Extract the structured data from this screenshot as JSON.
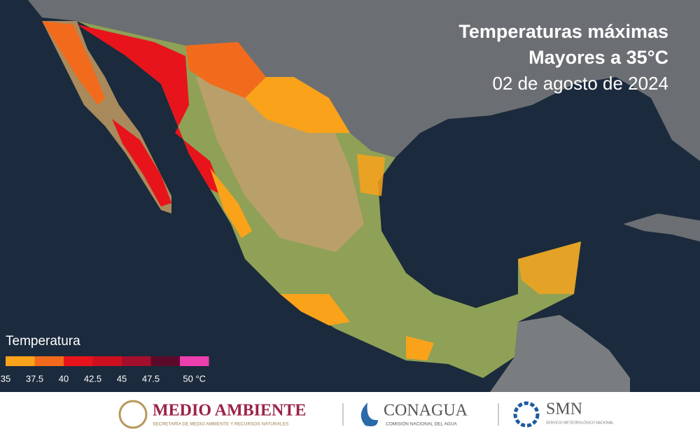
{
  "header": {
    "title_line1": "Temperaturas máximas",
    "title_line2": "Mayores a 35°C",
    "date": "02 de agosto de 2024"
  },
  "legend": {
    "title": "Temperatura",
    "ticks": [
      "35",
      "37.5",
      "40",
      "42.5",
      "45",
      "47.5",
      "50 °C"
    ],
    "colors": [
      "#f9a21a",
      "#f26b1c",
      "#e8141b",
      "#cc1020",
      "#a30f2c",
      "#5c0a2a",
      "#ee3fae"
    ]
  },
  "footer": {
    "logo1": {
      "name": "MEDIO AMBIENTE",
      "subtitle": "SECRETARÍA DE MEDIO AMBIENTE Y RECURSOS NATURALES"
    },
    "logo2": {
      "name": "CONAGUA",
      "subtitle": "COMISIÓN NACIONAL DEL AGUA"
    },
    "logo3": {
      "name": "SMN",
      "subtitle": "SERVICIO METEOROLÓGICO NACIONAL"
    }
  }
}
